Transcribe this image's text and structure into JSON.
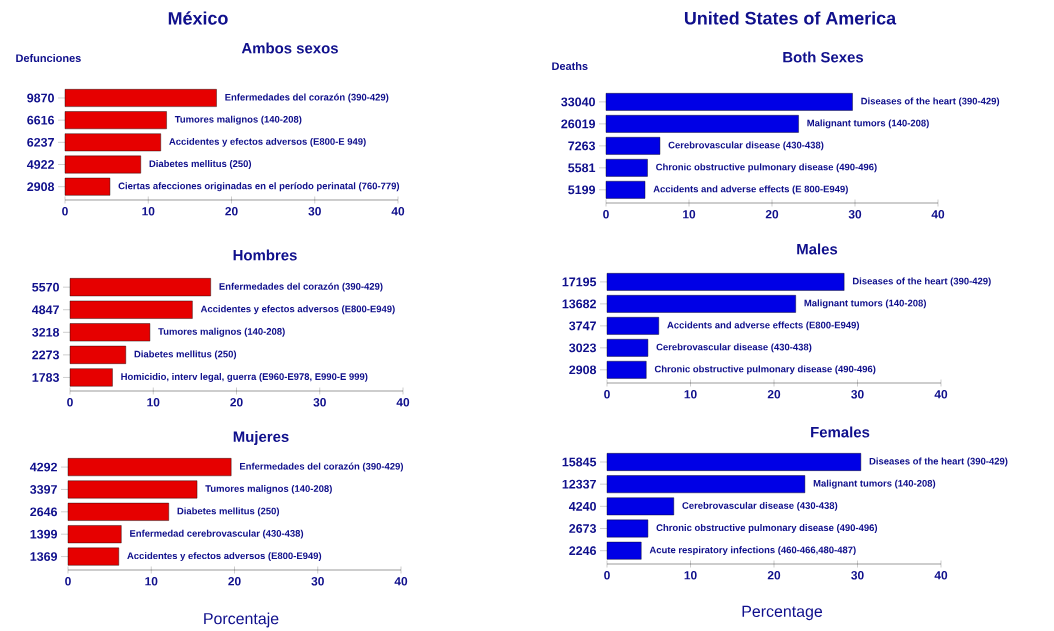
{
  "chart_data": [
    {
      "type": "bar",
      "orientation": "horizontal",
      "title": "México",
      "subtitle": "Ambos sexos",
      "ylabel": "Defunciones",
      "categories": [
        "9870",
        "6616",
        "6237",
        "4922",
        "2908"
      ],
      "values": [
        18.2,
        12.2,
        11.5,
        9.1,
        5.4
      ],
      "color": "#e60000",
      "xlim": [
        0,
        40
      ],
      "xticks": [
        0,
        10,
        20,
        30,
        40
      ],
      "annotations": [
        {
          "text": "Enfermedades  del corazón (390-429)",
          "x": 18.2,
          "y": "9870"
        },
        {
          "text": "Tumores malignos (140-208)",
          "x": 12.2,
          "y": "6616"
        },
        {
          "text": "Accidentes y efectos adversos (E800-E 949)",
          "x": 11.5,
          "y": "6237"
        },
        {
          "text": "Diabetes mellitus (250)",
          "x": 9.1,
          "y": "4922"
        },
        {
          "text": "Ciertas afecciones originadas en el período perinatal (760-779)",
          "x": 5.4,
          "y": "2908"
        }
      ]
    },
    {
      "type": "bar",
      "orientation": "horizontal",
      "title": "Hombres",
      "categories": [
        "5570",
        "4847",
        "3218",
        "2273",
        "1783"
      ],
      "values": [
        16.9,
        14.7,
        9.6,
        6.7,
        5.1
      ],
      "color": "#e60000",
      "xlim": [
        0,
        40
      ],
      "xticks": [
        0,
        10,
        20,
        30,
        40
      ],
      "annotations": [
        {
          "text": "Enfermedades  del corazón (390-429)",
          "x": 16.9,
          "y": "5570"
        },
        {
          "text": "Accidentes y efectos adversos (E800-E949)",
          "x": 14.7,
          "y": "4847"
        },
        {
          "text": "Tumores malignos (140-208)",
          "x": 9.6,
          "y": "3218"
        },
        {
          "text": "Diabetes mellitus (250)",
          "x": 6.7,
          "y": "2273"
        },
        {
          "text": "Homicidio,  interv legal, guerra (E960-E978, E990-E 999)",
          "x": 5.1,
          "y": "1783"
        }
      ]
    },
    {
      "type": "bar",
      "orientation": "horizontal",
      "title": "Mujeres",
      "xlabel": "Porcentaje",
      "categories": [
        "4292",
        "3397",
        "2646",
        "1399",
        "1369"
      ],
      "values": [
        19.6,
        15.5,
        12.1,
        6.4,
        6.1
      ],
      "color": "#e60000",
      "xlim": [
        0,
        40
      ],
      "xticks": [
        0,
        10,
        20,
        30,
        40
      ],
      "annotations": [
        {
          "text": "Enfermedades  del corazón (390-429)",
          "x": 19.6,
          "y": "4292"
        },
        {
          "text": "Tumores malignos (140-208)",
          "x": 15.5,
          "y": "3397"
        },
        {
          "text": "Diabetes mellitus (250)",
          "x": 12.1,
          "y": "2646"
        },
        {
          "text": "Enfermedad cerebrovascular (430-438)",
          "x": 6.4,
          "y": "1399"
        },
        {
          "text": "Accidentes y efectos adversos (E800-E949)",
          "x": 6.1,
          "y": "1369"
        }
      ]
    },
    {
      "type": "bar",
      "orientation": "horizontal",
      "title": "United States of America",
      "subtitle": "Both Sexes",
      "ylabel": "Deaths",
      "categories": [
        "33040",
        "26019",
        "7263",
        "5581",
        "5199"
      ],
      "values": [
        29.7,
        23.2,
        6.5,
        5.0,
        4.7
      ],
      "color": "#0000e6",
      "xlim": [
        0,
        40
      ],
      "xticks": [
        0,
        10,
        20,
        30,
        40
      ],
      "annotations": [
        {
          "text": "Diseases of the heart (390-429)",
          "x": 29.7,
          "y": "33040"
        },
        {
          "text": "Malignant tumors (140-208)",
          "x": 23.2,
          "y": "26019"
        },
        {
          "text": "Cerebrovascular disease (430-438)",
          "x": 6.5,
          "y": "7263"
        },
        {
          "text": "Chronic obstructive pulmonary disease (490-496)",
          "x": 5.0,
          "y": "5581"
        },
        {
          "text": "Accidents and adverse effects (E 800-E949)",
          "x": 4.7,
          "y": "5199"
        }
      ]
    },
    {
      "type": "bar",
      "orientation": "horizontal",
      "title": "Males",
      "categories": [
        "17195",
        "13682",
        "3747",
        "3023",
        "2908"
      ],
      "values": [
        28.4,
        22.6,
        6.2,
        4.9,
        4.7
      ],
      "color": "#0000e6",
      "xlim": [
        0,
        40
      ],
      "xticks": [
        0,
        10,
        20,
        30,
        40
      ],
      "annotations": [
        {
          "text": "Diseases of the heart (390-429)",
          "x": 28.4,
          "y": "17195"
        },
        {
          "text": "Malignant tumors (140-208)",
          "x": 22.6,
          "y": "13682"
        },
        {
          "text": "Accidents and adverse effects (E800-E949)",
          "x": 6.2,
          "y": "3747"
        },
        {
          "text": "Cerebrovascular disease (430-438)",
          "x": 4.9,
          "y": "3023"
        },
        {
          "text": "Chronic obstructive pulmonary disease (490-496)",
          "x": 4.7,
          "y": "2908"
        }
      ]
    },
    {
      "type": "bar",
      "orientation": "horizontal",
      "title": "Females",
      "xlabel": "Percentage",
      "categories": [
        "15845",
        "12337",
        "4240",
        "2673",
        "2246"
      ],
      "values": [
        30.4,
        23.7,
        8.0,
        4.9,
        4.1
      ],
      "color": "#0000e6",
      "xlim": [
        0,
        40
      ],
      "xticks": [
        0,
        10,
        20,
        30,
        40
      ],
      "annotations": [
        {
          "text": "Diseases of the heart (390-429)",
          "x": 30.4,
          "y": "15845"
        },
        {
          "text": "Malignant tumors (140-208)",
          "x": 23.7,
          "y": "12337"
        },
        {
          "text": "Cerebrovascular disease (430-438)",
          "x": 8.0,
          "y": "4240"
        },
        {
          "text": "Chronic obstructive pulmonary disease (490-496)",
          "x": 4.9,
          "y": "2673"
        },
        {
          "text": "Acute respiratory infections (460-466,480-487)",
          "x": 4.1,
          "y": "2246"
        }
      ]
    }
  ]
}
